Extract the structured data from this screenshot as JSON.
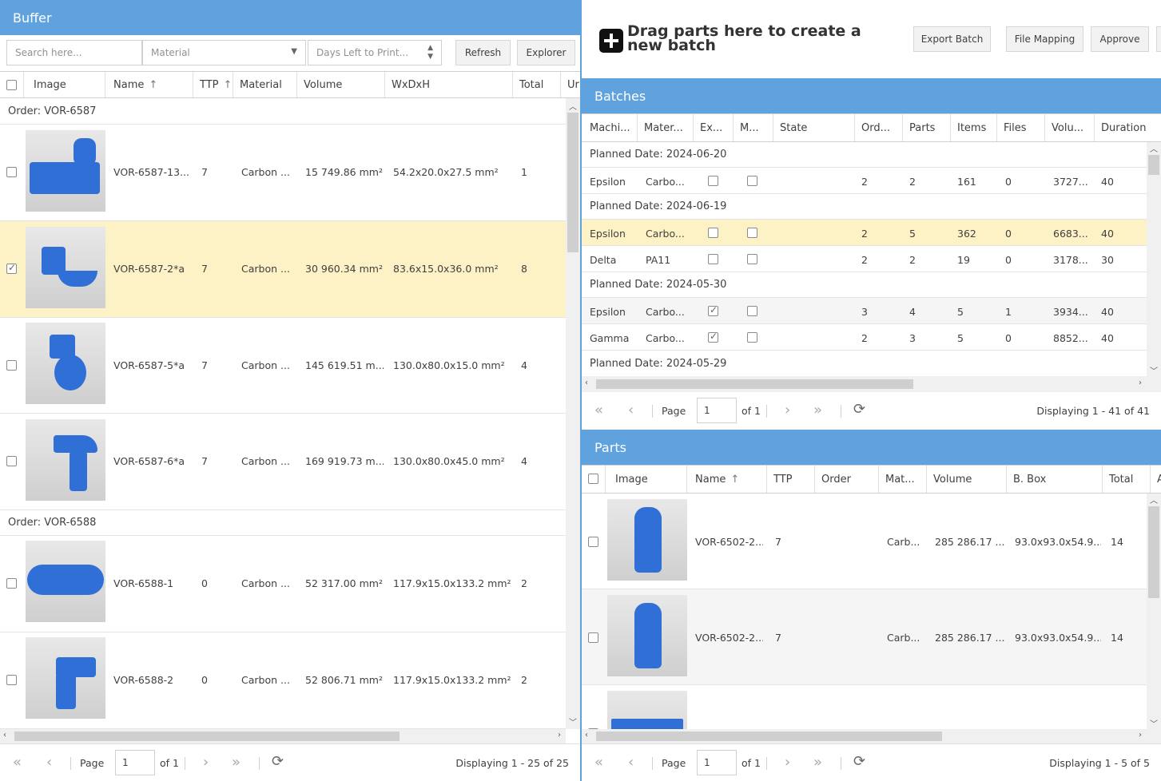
{
  "buffer": {
    "title": "Buffer",
    "search_placeholder": "Search here...",
    "material_placeholder": "Material",
    "days_placeholder": "Days Left to Print...",
    "refresh_label": "Refresh",
    "explorer_label": "Explorer",
    "columns": [
      "Image",
      "Name",
      "TTP",
      "Material",
      "Volume",
      "WxDxH",
      "Total",
      "Ur"
    ],
    "groups": [
      {
        "label": "Order: VOR-6587",
        "rows": [
          {
            "name": "VOR-6587-13...",
            "ttp": "7",
            "material": "Carbon ...",
            "volume": "15 749.86 mm²",
            "dims": "54.2x20.0x27.5 mm²",
            "total": "1",
            "checked": false,
            "selected": false
          },
          {
            "name": "VOR-6587-2*a",
            "ttp": "7",
            "material": "Carbon ...",
            "volume": "30 960.34 mm²",
            "dims": "83.6x15.0x36.0 mm²",
            "total": "8",
            "checked": true,
            "selected": true
          },
          {
            "name": "VOR-6587-5*a",
            "ttp": "7",
            "material": "Carbon ...",
            "volume": "145 619.51 m...",
            "dims": "130.0x80.0x15.0 mm²",
            "total": "4",
            "checked": false,
            "selected": false
          },
          {
            "name": "VOR-6587-6*a",
            "ttp": "7",
            "material": "Carbon ...",
            "volume": "169 919.73 m...",
            "dims": "130.0x80.0x45.0 mm²",
            "total": "4",
            "checked": false,
            "selected": false
          }
        ]
      },
      {
        "label": "Order: VOR-6588",
        "rows": [
          {
            "name": "VOR-6588-1",
            "ttp": "0",
            "material": "Carbon ...",
            "volume": "52 317.00 mm²",
            "dims": "117.9x15.0x133.2 mm²",
            "total": "2",
            "checked": false,
            "selected": false
          },
          {
            "name": "VOR-6588-2",
            "ttp": "0",
            "material": "Carbon ...",
            "volume": "52 806.71 mm²",
            "dims": "117.9x15.0x133.2 mm²",
            "total": "2",
            "checked": false,
            "selected": false
          }
        ]
      }
    ],
    "pager": {
      "page_label": "Page",
      "page_value": "1",
      "of_label": "of 1",
      "display": "Displaying 1 - 25 of 25"
    }
  },
  "top_actions": {
    "drag_text": "Drag parts here to create a new batch",
    "export_batch": "Export Batch",
    "file_mapping": "File Mapping",
    "approve": "Approve"
  },
  "batches": {
    "title": "Batches",
    "columns": [
      "Machi...",
      "Mater...",
      "Ex...",
      "M...",
      "State",
      "Ord...",
      "Parts",
      "Items",
      "Files",
      "Volu...",
      "Duration"
    ],
    "groups": [
      {
        "label": "Planned Date: 2024-06-20",
        "rows": [
          {
            "machine": "Epsilon",
            "material": "Carbo...",
            "ex": false,
            "m": false,
            "state": "",
            "orders": "2",
            "parts": "2",
            "items": "161",
            "files": "0",
            "volume": "3727...",
            "duration": "40",
            "selected": false
          }
        ]
      },
      {
        "label": "Planned Date: 2024-06-19",
        "rows": [
          {
            "machine": "Epsilon",
            "material": "Carbo...",
            "ex": false,
            "m": false,
            "state": "",
            "orders": "2",
            "parts": "5",
            "items": "362",
            "files": "0",
            "volume": "6683...",
            "duration": "40",
            "selected": true
          },
          {
            "machine": "Delta",
            "material": "PA11",
            "ex": false,
            "m": false,
            "state": "",
            "orders": "2",
            "parts": "2",
            "items": "19",
            "files": "0",
            "volume": "3178...",
            "duration": "30",
            "selected": false
          }
        ]
      },
      {
        "label": "Planned Date: 2024-05-30",
        "rows": [
          {
            "machine": "Epsilon",
            "material": "Carbo...",
            "ex": true,
            "m": false,
            "state": "",
            "orders": "3",
            "parts": "4",
            "items": "5",
            "files": "1",
            "volume": "3934...",
            "duration": "40",
            "selected": false
          },
          {
            "machine": "Gamma",
            "material": "Carbo...",
            "ex": true,
            "m": false,
            "state": "",
            "orders": "2",
            "parts": "3",
            "items": "5",
            "files": "0",
            "volume": "8852...",
            "duration": "40",
            "selected": false
          }
        ]
      },
      {
        "label": "Planned Date: 2024-05-29",
        "rows": []
      }
    ],
    "pager": {
      "page_label": "Page",
      "page_value": "1",
      "of_label": "of 1",
      "display": "Displaying 1 - 41 of 41"
    }
  },
  "parts": {
    "title": "Parts",
    "columns": [
      "Image",
      "Name",
      "TTP",
      "Order",
      "Mat...",
      "Volume",
      "B. Box",
      "Total",
      "A"
    ],
    "rows": [
      {
        "name": "VOR-6502-2...",
        "ttp": "7",
        "order": "",
        "material": "Carb...",
        "volume": "285 286.17 ...",
        "bbox": "93.0x93.0x54.9...",
        "total": "14"
      },
      {
        "name": "VOR-6502-2...",
        "ttp": "7",
        "order": "",
        "material": "Carb...",
        "volume": "285 286.17 ...",
        "bbox": "93.0x93.0x54.9...",
        "total": "14"
      }
    ],
    "pager": {
      "page_label": "Page",
      "page_value": "1",
      "of_label": "of 1",
      "display": "Displaying 1 - 5 of 5"
    }
  }
}
